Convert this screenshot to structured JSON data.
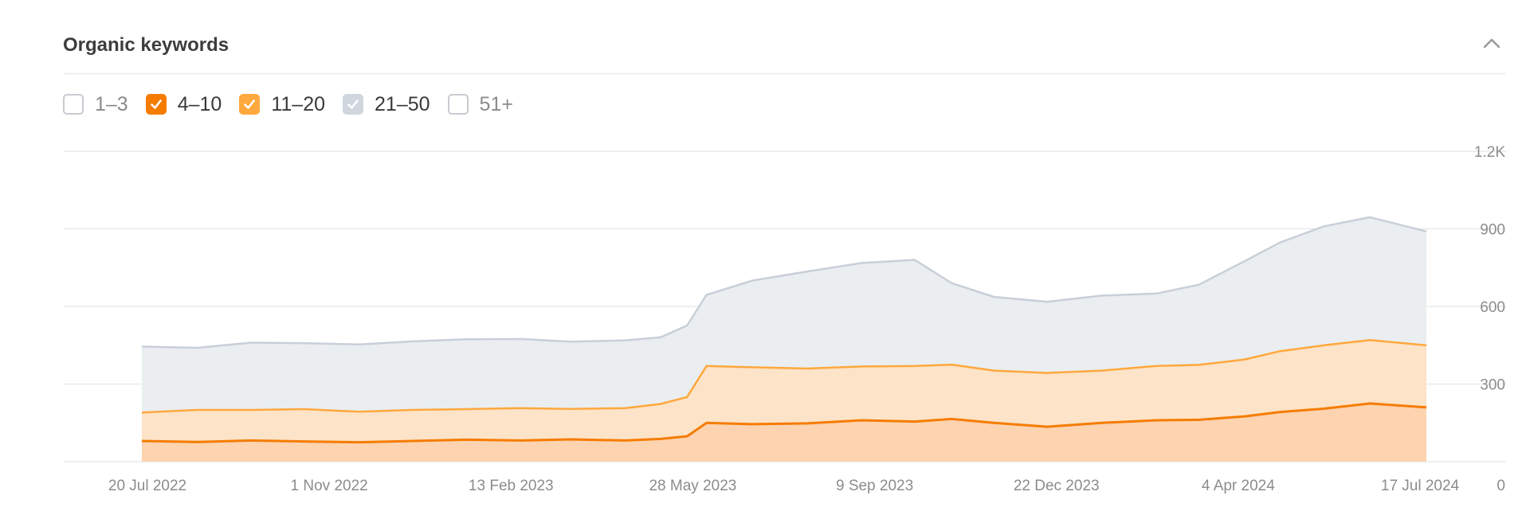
{
  "card": {
    "title": "Organic keywords"
  },
  "legend": [
    {
      "label": "1–3",
      "checked": false,
      "color": "#ffffff"
    },
    {
      "label": "4–10",
      "checked": true,
      "color": "#f57c00"
    },
    {
      "label": "11–20",
      "checked": true,
      "color": "#ffa83d"
    },
    {
      "label": "21–50",
      "checked": true,
      "color": "#cfd6de"
    },
    {
      "label": "51+",
      "checked": false,
      "color": "#ffffff"
    }
  ],
  "colors": {
    "position_4_10_line": "#f57c00",
    "position_4_10_fill": "#fdd3b0",
    "position_11_20_line": "#ffa83d",
    "position_11_20_fill": "#fde3c8",
    "position_21_50_line": "#c8cfd8",
    "position_21_50_fill": "#eaeef1",
    "grid": "#e8eaec"
  },
  "chart_data": {
    "type": "area",
    "stacked": true,
    "title": "Organic keywords",
    "xlabel": "",
    "ylabel": "",
    "x_tick_labels": [
      "20 Jul 2022",
      "1 Nov 2022",
      "13 Feb 2023",
      "28 May 2023",
      "9 Sep 2023",
      "22 Dec 2023",
      "4 Apr 2024",
      "17 Jul 2024"
    ],
    "y_tick_labels": [
      "0",
      "300",
      "600",
      "900",
      "1.2K"
    ],
    "y_ticks": [
      0,
      300,
      600,
      900,
      1200
    ],
    "ylim": [
      0,
      1200
    ],
    "xlim": [
      "2022-07-20",
      "2024-07-17"
    ],
    "y_axis_side": "right",
    "grid": true,
    "x": [
      "2022-07-20",
      "2022-08-20",
      "2022-09-20",
      "2022-10-20",
      "2022-11-20",
      "2022-12-20",
      "2023-01-20",
      "2023-02-20",
      "2023-03-20",
      "2023-04-20",
      "2023-05-10",
      "2023-05-25",
      "2023-06-05",
      "2023-07-01",
      "2023-08-01",
      "2023-09-01",
      "2023-10-01",
      "2023-10-22",
      "2023-11-15",
      "2023-12-15",
      "2024-01-15",
      "2024-02-15",
      "2024-03-10",
      "2024-04-05",
      "2024-04-25",
      "2024-05-20",
      "2024-06-15",
      "2024-07-17"
    ],
    "series": [
      {
        "name": "4–10",
        "values": [
          80,
          76,
          82,
          78,
          75,
          80,
          85,
          82,
          86,
          82,
          88,
          98,
          150,
          145,
          148,
          160,
          155,
          165,
          150,
          135,
          150,
          160,
          162,
          175,
          192,
          205,
          225,
          210
        ]
      },
      {
        "name": "11–20",
        "values": [
          110,
          124,
          118,
          125,
          118,
          120,
          118,
          125,
          118,
          125,
          135,
          152,
          220,
          220,
          212,
          208,
          215,
          210,
          202,
          208,
          202,
          210,
          212,
          220,
          235,
          245,
          245,
          240
        ]
      },
      {
        "name": "21–50",
        "values": [
          255,
          240,
          260,
          255,
          260,
          265,
          270,
          267,
          260,
          262,
          258,
          276,
          275,
          335,
          375,
          400,
          410,
          315,
          285,
          275,
          290,
          280,
          310,
          380,
          420,
          460,
          475,
          440
        ]
      }
    ]
  }
}
